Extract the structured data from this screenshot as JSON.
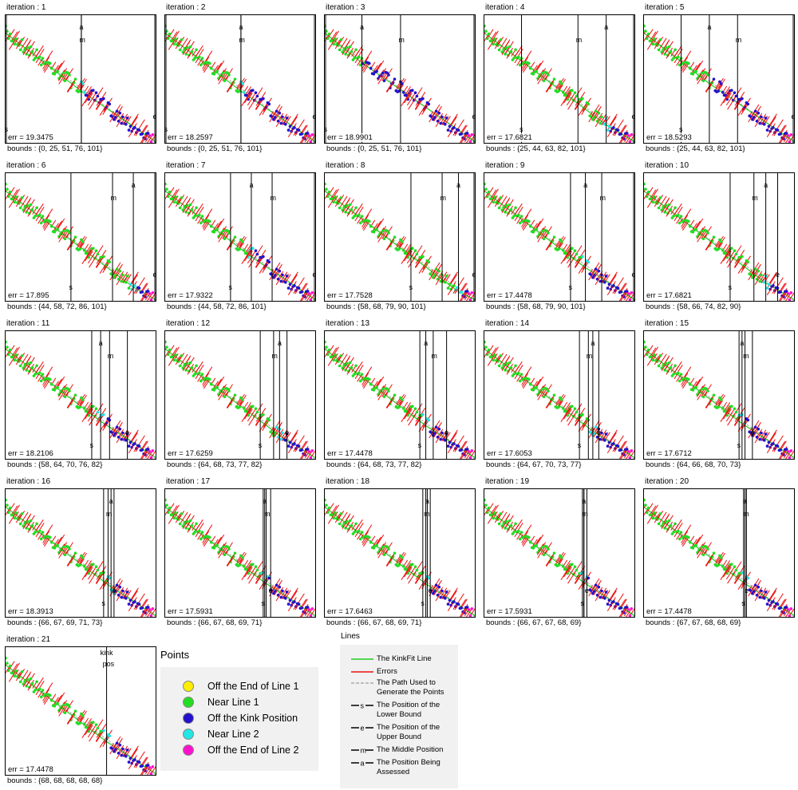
{
  "colors": {
    "fit_line": "#22cc22",
    "errors": "#ee1111",
    "path": "#aaaaaa",
    "off_end_line1": "#ffee00",
    "near_line1": "#22dd22",
    "off_kink": "#2211cc",
    "near_line2": "#22e6e6",
    "off_end_line2": "#ff11cc"
  },
  "panels": [
    {
      "title": "iteration : 1",
      "err": "err = 19.3475",
      "bounds": "bounds : {0, 25, 51, 76, 101}",
      "b": [
        0,
        25,
        51,
        76,
        101
      ],
      "kink": 51
    },
    {
      "title": "iteration : 2",
      "err": "err = 18.2597",
      "bounds": "bounds : {0, 25, 51, 76, 101}",
      "b": [
        0,
        25,
        51,
        76,
        101
      ],
      "kink": 51
    },
    {
      "title": "iteration : 3",
      "err": "err = 18.9901",
      "bounds": "bounds : {0, 25, 51, 76, 101}",
      "b": [
        0,
        25,
        51,
        76,
        101
      ],
      "kink": 25
    },
    {
      "title": "iteration : 4",
      "err": "err = 17.6821",
      "bounds": "bounds : {25, 44, 63, 82, 101}",
      "b": [
        25,
        44,
        63,
        82,
        101
      ],
      "kink": 82
    },
    {
      "title": "iteration : 5",
      "err": "err = 18.5293",
      "bounds": "bounds : {25, 44, 63, 82, 101}",
      "b": [
        25,
        44,
        63,
        82,
        101
      ],
      "kink": 44
    },
    {
      "title": "iteration : 6",
      "err": "err = 17.895",
      "bounds": "bounds : {44, 58, 72, 86, 101}",
      "b": [
        44,
        58,
        72,
        86,
        101
      ],
      "kink": 86
    },
    {
      "title": "iteration : 7",
      "err": "err = 17.9322",
      "bounds": "bounds : {44, 58, 72, 86, 101}",
      "b": [
        44,
        58,
        72,
        86,
        101
      ],
      "kink": 58
    },
    {
      "title": "iteration : 8",
      "err": "err = 17.7528",
      "bounds": "bounds : {58, 68, 79, 90, 101}",
      "b": [
        58,
        68,
        79,
        90,
        101
      ],
      "kink": 90
    },
    {
      "title": "iteration : 9",
      "err": "err = 17.4478",
      "bounds": "bounds : {58, 68, 79, 90, 101}",
      "b": [
        58,
        68,
        79,
        90,
        101
      ],
      "kink": 68
    },
    {
      "title": "iteration : 10",
      "err": "err = 17.6821",
      "bounds": "bounds : {58, 66, 74, 82, 90}",
      "b": [
        58,
        66,
        74,
        82,
        90
      ],
      "kink": 82
    },
    {
      "title": "iteration : 11",
      "err": "err = 18.2106",
      "bounds": "bounds : {58, 64, 70, 76, 82}",
      "b": [
        58,
        64,
        70,
        76,
        82
      ],
      "kink": 64
    },
    {
      "title": "iteration : 12",
      "err": "err = 17.6259",
      "bounds": "bounds : {64, 68, 73, 77, 82}",
      "b": [
        64,
        68,
        73,
        77,
        82
      ],
      "kink": 77
    },
    {
      "title": "iteration : 13",
      "err": "err = 17.4478",
      "bounds": "bounds : {64, 68, 73, 77, 82}",
      "b": [
        64,
        68,
        73,
        77,
        82
      ],
      "kink": 68
    },
    {
      "title": "iteration : 14",
      "err": "err = 17.6053",
      "bounds": "bounds : {64, 67, 70, 73, 77}",
      "b": [
        64,
        67,
        70,
        73,
        77
      ],
      "kink": 73
    },
    {
      "title": "iteration : 15",
      "err": "err = 17.6712",
      "bounds": "bounds : {64, 66, 68, 70, 73}",
      "b": [
        64,
        66,
        68,
        70,
        73
      ],
      "kink": 66
    },
    {
      "title": "iteration : 16",
      "err": "err = 18.3913",
      "bounds": "bounds : {66, 67, 69, 71, 73}",
      "b": [
        66,
        67,
        69,
        71,
        73
      ],
      "kink": 71
    },
    {
      "title": "iteration : 17",
      "err": "err = 17.5931",
      "bounds": "bounds : {66, 67, 68, 69, 71}",
      "b": [
        66,
        67,
        68,
        69,
        71
      ],
      "kink": 67
    },
    {
      "title": "iteration : 18",
      "err": "err = 17.6463",
      "bounds": "bounds : {66, 67, 68, 69, 71}",
      "b": [
        66,
        67,
        68,
        69,
        71
      ],
      "kink": 69
    },
    {
      "title": "iteration : 19",
      "err": "err = 17.5931",
      "bounds": "bounds : {66, 67, 67, 68, 69}",
      "b": [
        66,
        67,
        67,
        68,
        69
      ],
      "kink": 67
    },
    {
      "title": "iteration : 20",
      "err": "err = 17.4478",
      "bounds": "bounds : {67, 67, 68, 68, 69}",
      "b": [
        67,
        67,
        68,
        68,
        69
      ],
      "kink": 68
    },
    {
      "title": "iteration : 21",
      "err": "err = 17.4478",
      "bounds": "bounds : {68, 68, 68, 68, 68}",
      "b": [
        68,
        68,
        68,
        68,
        68
      ],
      "kink": 68,
      "final": true
    }
  ],
  "final_label": [
    "kink",
    "pos"
  ],
  "marker_letters": {
    "lower": "s",
    "upper": "e",
    "middle": "m",
    "assessed": "a"
  },
  "points_legend": {
    "title": "Points",
    "items": [
      {
        "label": "Off the End of Line 1",
        "color": "#ffee00"
      },
      {
        "label": "Near Line 1",
        "color": "#22dd22"
      },
      {
        "label": "Off the Kink Position",
        "color": "#2211cc"
      },
      {
        "label": "Near Line 2",
        "color": "#22e6e6"
      },
      {
        "label": "Off the End of Line 2",
        "color": "#ff11cc"
      }
    ]
  },
  "lines_legend": {
    "title": "Lines",
    "items": [
      {
        "label": "The KinkFit Line",
        "style": "green"
      },
      {
        "label": "Errors",
        "style": "red"
      },
      {
        "label": "The Path Used to\nGenerate the Points",
        "style": "dashed"
      },
      {
        "label": "The Position of the\nLower Bound",
        "style": "s"
      },
      {
        "label": "The Position of the\nUpper Bound",
        "style": "e"
      },
      {
        "label": "The Middle Position",
        "style": "m"
      },
      {
        "label": "The Position Being\nAssessed",
        "style": "a"
      }
    ]
  },
  "chart_data": {
    "type": "scatter",
    "x_range": [
      0,
      101
    ],
    "path_kink_index": 68,
    "panel_count": 21,
    "series": [
      {
        "name": "Near Line 1"
      },
      {
        "name": "Off the Kink Position"
      },
      {
        "name": "Off the End of Line 2"
      }
    ]
  }
}
